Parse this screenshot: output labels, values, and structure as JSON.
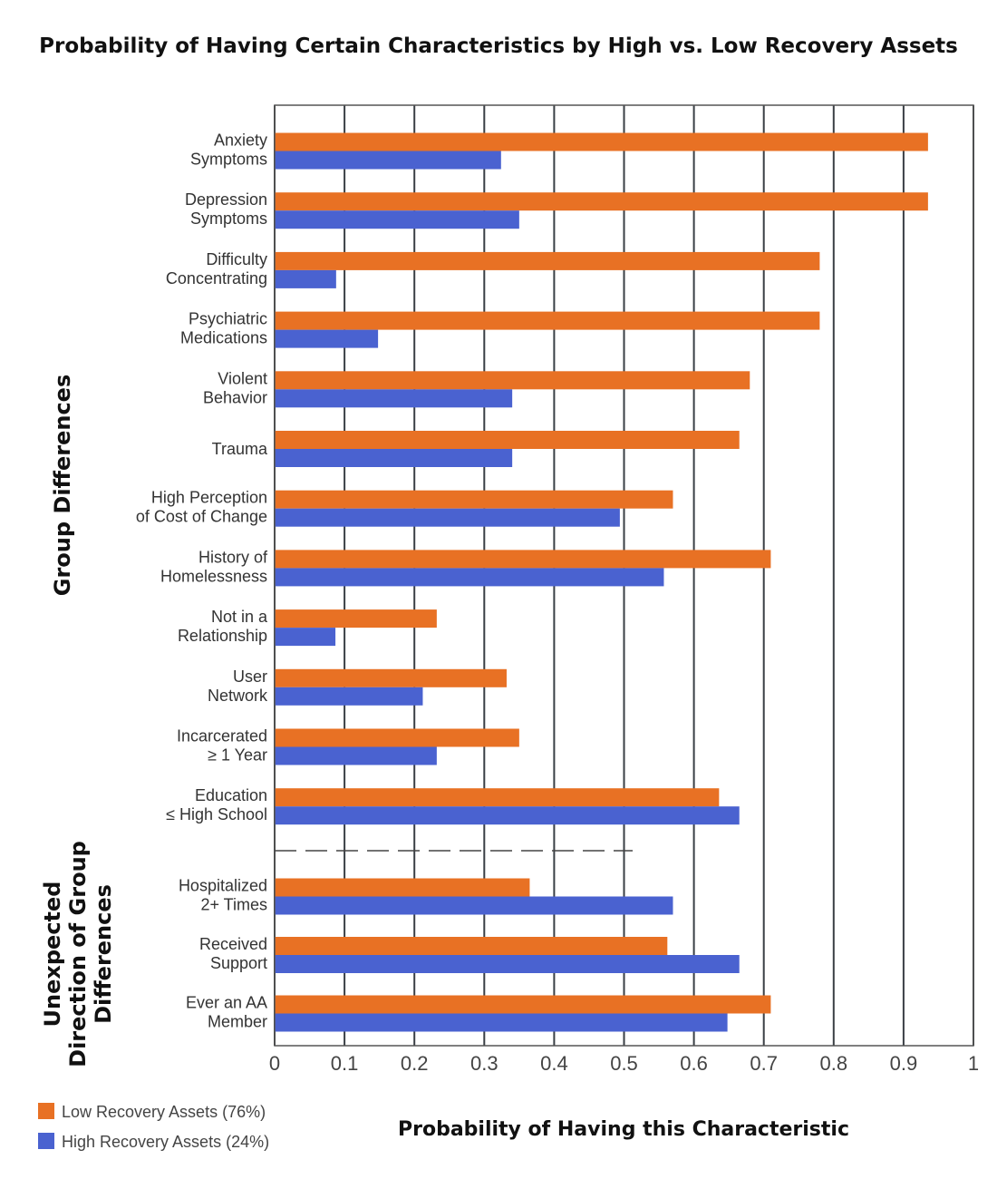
{
  "chart_data": {
    "type": "bar",
    "orientation": "horizontal",
    "title": "Probability of Having Certain Characteristics by High vs. Low Recovery Assets",
    "xlabel": "Probability of Having this Characteristic",
    "xlim": [
      0,
      1
    ],
    "xticks": [
      "0",
      "0.1",
      "0.2",
      "0.3",
      "0.4",
      "0.5",
      "0.6",
      "0.7",
      "0.8",
      "0.9",
      "1"
    ],
    "grid": "vertical",
    "legend_position": "bottom-left",
    "categories": [
      [
        "Anxiety",
        "Symptoms"
      ],
      [
        "Depression",
        "Symptoms"
      ],
      [
        "Difficulty",
        "Concentrating"
      ],
      [
        "Psychiatric",
        "Medications"
      ],
      [
        "Violent",
        "Behavior"
      ],
      [
        "Trauma"
      ],
      [
        "High Perception",
        "of Cost of Change"
      ],
      [
        "History of",
        "Homelessness"
      ],
      [
        "Not in a",
        "Relationship"
      ],
      [
        "User",
        "Network"
      ],
      [
        "Incarcerated",
        "≥ 1 Year"
      ],
      [
        "Education",
        "≤ High School"
      ],
      [
        "Hospitalized",
        "2+ Times"
      ],
      [
        "Received",
        "Support"
      ],
      [
        "Ever an AA",
        "Member"
      ]
    ],
    "series": [
      {
        "name": "Low Recovery Assets (76%)",
        "color": "#e87124",
        "values": [
          0.935,
          0.935,
          0.78,
          0.78,
          0.68,
          0.665,
          0.57,
          0.71,
          0.232,
          0.332,
          0.35,
          0.636,
          0.365,
          0.562,
          0.71
        ]
      },
      {
        "name": "High Recovery Assets (24%)",
        "color": "#4a62d0",
        "values": [
          0.324,
          0.35,
          0.088,
          0.148,
          0.34,
          0.34,
          0.494,
          0.557,
          0.087,
          0.212,
          0.232,
          0.665,
          0.57,
          0.665,
          0.648
        ]
      }
    ],
    "groups": [
      {
        "label": "Group Differences",
        "lines": [
          "Group Differences"
        ]
      },
      {
        "label": "Unexpected Direction of Group Differences",
        "lines": [
          "Unexpected",
          "Direction of Group",
          "Differences"
        ]
      }
    ]
  }
}
